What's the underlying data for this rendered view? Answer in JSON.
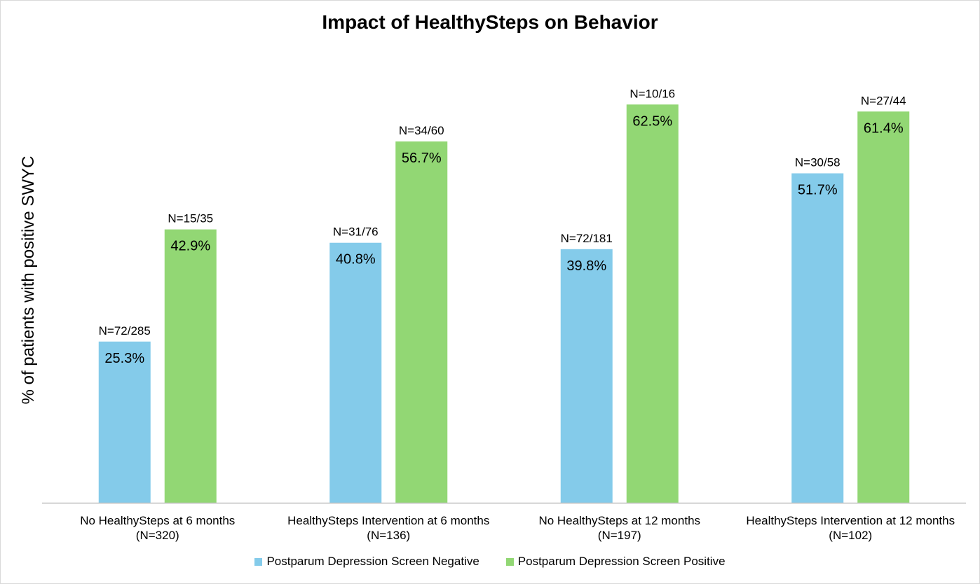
{
  "colors": {
    "negative": "#84cbea",
    "positive": "#92d774",
    "axis": "#bfbfbf",
    "text": "#000000"
  },
  "chart_data": {
    "type": "bar",
    "title": "Impact of HealthySteps on Behavior",
    "xlabel": "",
    "ylabel": "% of patients with positive  SWYC",
    "ylim": [
      0,
      100
    ],
    "grid": false,
    "legend_position": "bottom",
    "categories": [
      {
        "line1": "No HealthySteps at 6 months",
        "line2": "(N=320)"
      },
      {
        "line1": "HealthySteps Intervention at 6 months",
        "line2": "(N=136)"
      },
      {
        "line1": "No HealthySteps at 12 months",
        "line2": "(N=197)"
      },
      {
        "line1": "HealthySteps Intervention at 12 months",
        "line2": "(N=102)"
      }
    ],
    "series": [
      {
        "name": "Postparum Depression Screen Negative",
        "color_key": "negative",
        "values": [
          25.3,
          40.8,
          39.8,
          51.7
        ],
        "value_labels": [
          "25.3%",
          "40.8%",
          "39.8%",
          "51.7%"
        ],
        "count_labels": [
          "N=72/285",
          "N=31/76",
          "N=72/181",
          "N=30/58"
        ]
      },
      {
        "name": "Postparum Depression Screen Positive",
        "color_key": "positive",
        "values": [
          42.9,
          56.7,
          62.5,
          61.4
        ],
        "value_labels": [
          "42.9%",
          "56.7%",
          "62.5%",
          "61.4%"
        ],
        "count_labels": [
          "N=15/35",
          "N=34/60",
          "N=10/16",
          "N=27/44"
        ]
      }
    ]
  }
}
